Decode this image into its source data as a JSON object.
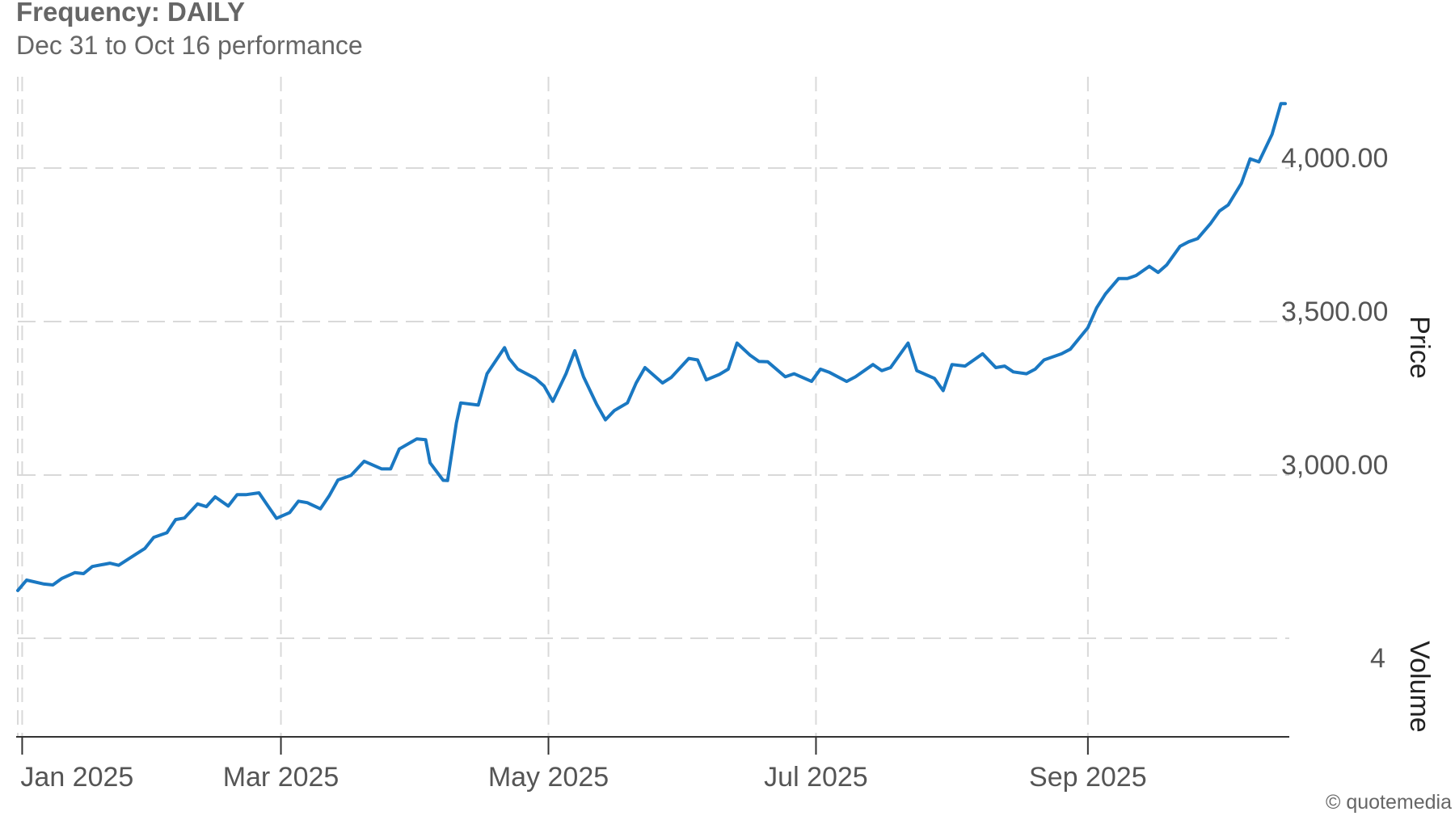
{
  "header": {
    "title": "Frequency: DAILY",
    "subtitle": "Dec 31 to Oct 16 performance"
  },
  "credit": "© quotemedia",
  "colors": {
    "line": "#1a78c2",
    "grid": "#d9d9d9",
    "axis_text": "#555555",
    "axis_line": "#333333"
  },
  "chart_data": {
    "type": "line",
    "title": "Frequency: DAILY",
    "subtitle": "Dec 31 to Oct 16 performance",
    "xlim": [
      "2024-12-31",
      "2025-10-16"
    ],
    "ylim_price": [
      2450,
      4250
    ],
    "y_ticks": [
      3000,
      3500,
      4000
    ],
    "y_tick_labels": [
      "3,000.00",
      "3,500.00",
      "4,000.00"
    ],
    "x_ticks": [
      "2025-01-01",
      "2025-03-01",
      "2025-05-01",
      "2025-07-01",
      "2025-09-01"
    ],
    "x_tick_labels": [
      "Jan 2025",
      "Mar 2025",
      "May 2025",
      "Jul 2025",
      "Sep 2025"
    ],
    "ylabel_price": "Price",
    "ylabel_volume": "Volume",
    "volume_tick_label": "4",
    "grid": true,
    "series": [
      {
        "values": [
          [
            "2024-12-31",
            2624
          ],
          [
            "2025-01-02",
            2658
          ],
          [
            "2025-01-06",
            2645
          ],
          [
            "2025-01-08",
            2642
          ],
          [
            "2025-01-10",
            2663
          ],
          [
            "2025-01-13",
            2682
          ],
          [
            "2025-01-15",
            2679
          ],
          [
            "2025-01-17",
            2702
          ],
          [
            "2025-01-21",
            2713
          ],
          [
            "2025-01-23",
            2706
          ],
          [
            "2025-01-27",
            2743
          ],
          [
            "2025-01-29",
            2761
          ],
          [
            "2025-01-31",
            2797
          ],
          [
            "2025-02-03",
            2812
          ],
          [
            "2025-02-05",
            2855
          ],
          [
            "2025-02-07",
            2860
          ],
          [
            "2025-02-10",
            2906
          ],
          [
            "2025-02-12",
            2897
          ],
          [
            "2025-02-14",
            2929
          ],
          [
            "2025-02-17",
            2899
          ],
          [
            "2025-02-19",
            2936
          ],
          [
            "2025-02-21",
            2936
          ],
          [
            "2025-02-24",
            2942
          ],
          [
            "2025-02-26",
            2900
          ],
          [
            "2025-02-28",
            2859
          ],
          [
            "2025-03-03",
            2878
          ],
          [
            "2025-03-05",
            2915
          ],
          [
            "2025-03-07",
            2910
          ],
          [
            "2025-03-10",
            2890
          ],
          [
            "2025-03-12",
            2932
          ],
          [
            "2025-03-14",
            2984
          ],
          [
            "2025-03-17",
            2999
          ],
          [
            "2025-03-20",
            3045
          ],
          [
            "2025-03-24",
            3020
          ],
          [
            "2025-03-26",
            3020
          ],
          [
            "2025-03-28",
            3085
          ],
          [
            "2025-04-01",
            3118
          ],
          [
            "2025-04-03",
            3115
          ],
          [
            "2025-04-04",
            3040
          ],
          [
            "2025-04-07",
            2983
          ],
          [
            "2025-04-08",
            2982
          ],
          [
            "2025-04-10",
            3170
          ],
          [
            "2025-04-11",
            3235
          ],
          [
            "2025-04-15",
            3228
          ],
          [
            "2025-04-17",
            3330
          ],
          [
            "2025-04-21",
            3415
          ],
          [
            "2025-04-22",
            3380
          ],
          [
            "2025-04-24",
            3345
          ],
          [
            "2025-04-28",
            3315
          ],
          [
            "2025-04-30",
            3290
          ],
          [
            "2025-05-02",
            3240
          ],
          [
            "2025-05-05",
            3330
          ],
          [
            "2025-05-07",
            3405
          ],
          [
            "2025-05-09",
            3320
          ],
          [
            "2025-05-12",
            3230
          ],
          [
            "2025-05-14",
            3180
          ],
          [
            "2025-05-16",
            3210
          ],
          [
            "2025-05-19",
            3235
          ],
          [
            "2025-05-21",
            3300
          ],
          [
            "2025-05-23",
            3350
          ],
          [
            "2025-05-27",
            3300
          ],
          [
            "2025-05-29",
            3318
          ],
          [
            "2025-06-02",
            3380
          ],
          [
            "2025-06-04",
            3375
          ],
          [
            "2025-06-06",
            3310
          ],
          [
            "2025-06-09",
            3328
          ],
          [
            "2025-06-11",
            3345
          ],
          [
            "2025-06-13",
            3430
          ],
          [
            "2025-06-16",
            3390
          ],
          [
            "2025-06-18",
            3370
          ],
          [
            "2025-06-20",
            3369
          ],
          [
            "2025-06-24",
            3320
          ],
          [
            "2025-06-26",
            3330
          ],
          [
            "2025-06-30",
            3305
          ],
          [
            "2025-07-02",
            3345
          ],
          [
            "2025-07-04",
            3335
          ],
          [
            "2025-07-08",
            3305
          ],
          [
            "2025-07-10",
            3320
          ],
          [
            "2025-07-14",
            3360
          ],
          [
            "2025-07-16",
            3340
          ],
          [
            "2025-07-18",
            3350
          ],
          [
            "2025-07-22",
            3430
          ],
          [
            "2025-07-24",
            3340
          ],
          [
            "2025-07-28",
            3315
          ],
          [
            "2025-07-30",
            3275
          ],
          [
            "2025-08-01",
            3360
          ],
          [
            "2025-08-04",
            3355
          ],
          [
            "2025-08-06",
            3375
          ],
          [
            "2025-08-08",
            3395
          ],
          [
            "2025-08-11",
            3350
          ],
          [
            "2025-08-13",
            3355
          ],
          [
            "2025-08-15",
            3336
          ],
          [
            "2025-08-18",
            3330
          ],
          [
            "2025-08-20",
            3345
          ],
          [
            "2025-08-22",
            3375
          ],
          [
            "2025-08-26",
            3395
          ],
          [
            "2025-08-28",
            3410
          ],
          [
            "2025-09-01",
            3480
          ],
          [
            "2025-09-03",
            3545
          ],
          [
            "2025-09-05",
            3590
          ],
          [
            "2025-09-08",
            3640
          ],
          [
            "2025-09-10",
            3640
          ],
          [
            "2025-09-12",
            3650
          ],
          [
            "2025-09-15",
            3680
          ],
          [
            "2025-09-17",
            3660
          ],
          [
            "2025-09-19",
            3685
          ],
          [
            "2025-09-22",
            3745
          ],
          [
            "2025-09-24",
            3760
          ],
          [
            "2025-09-26",
            3770
          ],
          [
            "2025-09-29",
            3820
          ],
          [
            "2025-10-01",
            3860
          ],
          [
            "2025-10-03",
            3880
          ],
          [
            "2025-10-06",
            3950
          ],
          [
            "2025-10-08",
            4030
          ],
          [
            "2025-10-10",
            4020
          ],
          [
            "2025-10-13",
            4110
          ],
          [
            "2025-10-15",
            4210
          ],
          [
            "2025-10-16",
            4210
          ]
        ]
      }
    ]
  }
}
